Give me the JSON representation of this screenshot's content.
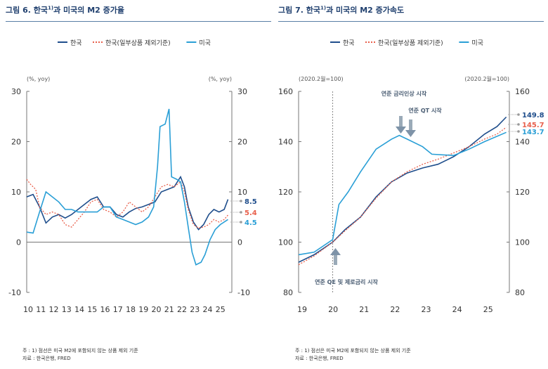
{
  "colors": {
    "korea": "#1f4e8c",
    "korea_excl": "#e8604c",
    "us": "#2a9fd6",
    "axis": "#555555"
  },
  "chart_data": [
    {
      "type": "line",
      "title": "그림 6. 한국",
      "title_sup": "1)",
      "title_rest": "과 미국의 M2 증가율",
      "unit_left": "(%, yoy)",
      "unit_right": "(%, yoy)",
      "ylim": [
        -10,
        30
      ],
      "yticks": [
        -10,
        0,
        10,
        20,
        30
      ],
      "xlim": [
        2010,
        2026
      ],
      "xticks": [
        "10",
        "11",
        "12",
        "13",
        "14",
        "15",
        "16",
        "17",
        "18",
        "19",
        "20",
        "21",
        "22",
        "23",
        "24",
        "25"
      ],
      "legend": {
        "placement": "top-center"
      },
      "series": [
        {
          "name": "한국",
          "key": "korea",
          "style": "solid",
          "end_label": "8.5",
          "points": [
            [
              2010,
              9
            ],
            [
              2010.5,
              9.5
            ],
            [
              2011,
              7
            ],
            [
              2011.5,
              3.8
            ],
            [
              2012,
              5
            ],
            [
              2012.5,
              5.5
            ],
            [
              2013,
              4.8
            ],
            [
              2013.5,
              5.5
            ],
            [
              2014,
              6.5
            ],
            [
              2014.5,
              7.5
            ],
            [
              2015,
              8.5
            ],
            [
              2015.5,
              9
            ],
            [
              2016,
              7
            ],
            [
              2016.5,
              7
            ],
            [
              2017,
              5.5
            ],
            [
              2017.5,
              5
            ],
            [
              2018,
              6
            ],
            [
              2018.5,
              6.7
            ],
            [
              2019,
              7
            ],
            [
              2019.5,
              7.5
            ],
            [
              2020,
              8
            ],
            [
              2020.5,
              10
            ],
            [
              2021,
              10.5
            ],
            [
              2021.5,
              11
            ],
            [
              2022,
              13
            ],
            [
              2022.3,
              11
            ],
            [
              2022.6,
              7
            ],
            [
              2023,
              4
            ],
            [
              2023.4,
              2.5
            ],
            [
              2023.8,
              3.5
            ],
            [
              2024.2,
              5.5
            ],
            [
              2024.6,
              6.5
            ],
            [
              2025,
              6
            ],
            [
              2025.4,
              6.5
            ],
            [
              2025.7,
              8.5
            ]
          ]
        },
        {
          "name": "한국(일부상품 제외기준)",
          "key": "korea_excl",
          "style": "dotted",
          "end_label": "5.4",
          "points": [
            [
              2010,
              12.5
            ],
            [
              2010.3,
              11.5
            ],
            [
              2010.7,
              10.5
            ],
            [
              2011,
              7
            ],
            [
              2011.5,
              5.5
            ],
            [
              2012,
              6
            ],
            [
              2012.5,
              5.5
            ],
            [
              2013,
              3.5
            ],
            [
              2013.5,
              3
            ],
            [
              2014,
              4.5
            ],
            [
              2014.5,
              6
            ],
            [
              2015,
              8
            ],
            [
              2015.5,
              8.5
            ],
            [
              2016,
              6.5
            ],
            [
              2016.5,
              6
            ],
            [
              2017,
              5
            ],
            [
              2017.5,
              6
            ],
            [
              2018,
              8
            ],
            [
              2018.5,
              7
            ],
            [
              2019,
              6
            ],
            [
              2019.5,
              7
            ],
            [
              2020,
              9
            ],
            [
              2020.5,
              11
            ],
            [
              2021,
              11.5
            ],
            [
              2021.5,
              11
            ],
            [
              2022,
              12
            ],
            [
              2022.3,
              10
            ],
            [
              2022.6,
              6.5
            ],
            [
              2023,
              3.5
            ],
            [
              2023.4,
              2.8
            ],
            [
              2023.8,
              3
            ],
            [
              2024.2,
              3.5
            ],
            [
              2024.6,
              4.5
            ],
            [
              2025,
              4
            ],
            [
              2025.4,
              4.5
            ],
            [
              2025.7,
              5.4
            ]
          ]
        },
        {
          "name": "미국",
          "key": "us",
          "style": "solid",
          "end_label": "4.5",
          "points": [
            [
              2010,
              2
            ],
            [
              2010.5,
              1.8
            ],
            [
              2011,
              6
            ],
            [
              2011.5,
              10
            ],
            [
              2012,
              9
            ],
            [
              2012.5,
              8
            ],
            [
              2013,
              6.5
            ],
            [
              2013.5,
              6.5
            ],
            [
              2014,
              6
            ],
            [
              2014.5,
              6
            ],
            [
              2015,
              6
            ],
            [
              2015.5,
              6
            ],
            [
              2016,
              7
            ],
            [
              2016.5,
              7
            ],
            [
              2017,
              5
            ],
            [
              2017.5,
              4.5
            ],
            [
              2018,
              4
            ],
            [
              2018.5,
              3.5
            ],
            [
              2019,
              4
            ],
            [
              2019.5,
              5
            ],
            [
              2019.9,
              7
            ],
            [
              2020.2,
              15
            ],
            [
              2020.4,
              23
            ],
            [
              2020.8,
              23.5
            ],
            [
              2021.1,
              26.5
            ],
            [
              2021.3,
              13
            ],
            [
              2021.7,
              12.5
            ],
            [
              2022,
              12
            ],
            [
              2022.3,
              8
            ],
            [
              2022.6,
              3
            ],
            [
              2022.9,
              -2
            ],
            [
              2023.2,
              -4.5
            ],
            [
              2023.6,
              -4
            ],
            [
              2023.9,
              -2.5
            ],
            [
              2024.3,
              0.5
            ],
            [
              2024.7,
              2.5
            ],
            [
              2025.1,
              3.5
            ],
            [
              2025.7,
              4.5
            ]
          ]
        }
      ],
      "annotations": [],
      "footnote": "주 : 1) 점선은 미국 M2에 포함되지 않는 상품 제외 기준",
      "source": "자료 : 한국은행, FRED"
    },
    {
      "type": "line",
      "title": "그림 7. 한국",
      "title_sup": "1)",
      "title_rest": "과 미국의 M2 증가속도",
      "unit_left": "(2020.2월=100)",
      "unit_right": "(2020.2월=100)",
      "ylim": [
        80,
        160
      ],
      "yticks": [
        80,
        100,
        120,
        140,
        160
      ],
      "xlim": [
        2019,
        2025.8
      ],
      "xticks": [
        "19",
        "20",
        "21",
        "22",
        "23",
        "24",
        "25"
      ],
      "legend": {
        "placement": "top-center"
      },
      "series": [
        {
          "name": "한국",
          "key": "korea",
          "style": "solid",
          "end_label": "149.8",
          "points": [
            [
              2019,
              92
            ],
            [
              2019.5,
              95
            ],
            [
              2020.1,
              100
            ],
            [
              2020.5,
              105
            ],
            [
              2021,
              110
            ],
            [
              2021.5,
              118
            ],
            [
              2022,
              124
            ],
            [
              2022.5,
              127.5
            ],
            [
              2023,
              129.5
            ],
            [
              2023.5,
              131
            ],
            [
              2024,
              134
            ],
            [
              2024.5,
              138
            ],
            [
              2025,
              143
            ],
            [
              2025.4,
              146
            ],
            [
              2025.7,
              149.8
            ]
          ]
        },
        {
          "name": "한국(일부상품 제외기준)",
          "key": "korea_excl",
          "style": "dotted",
          "end_label": "145.7",
          "points": [
            [
              2019,
              91
            ],
            [
              2019.5,
              94.5
            ],
            [
              2020.1,
              100
            ],
            [
              2020.5,
              104.5
            ],
            [
              2021,
              110
            ],
            [
              2021.5,
              117.5
            ],
            [
              2022,
              124
            ],
            [
              2022.5,
              128
            ],
            [
              2023,
              131
            ],
            [
              2023.5,
              133
            ],
            [
              2024,
              135.5
            ],
            [
              2024.5,
              138
            ],
            [
              2025,
              141
            ],
            [
              2025.4,
              143
            ],
            [
              2025.7,
              145.7
            ]
          ]
        },
        {
          "name": "미국",
          "key": "us",
          "style": "solid",
          "end_label": "143.7",
          "points": [
            [
              2019,
              95
            ],
            [
              2019.5,
              96
            ],
            [
              2020.1,
              101
            ],
            [
              2020.3,
              115
            ],
            [
              2020.6,
              120
            ],
            [
              2021,
              128
            ],
            [
              2021.5,
              137
            ],
            [
              2022,
              141
            ],
            [
              2022.25,
              142.5
            ],
            [
              2022.5,
              141
            ],
            [
              2023,
              138
            ],
            [
              2023.3,
              135
            ],
            [
              2024,
              134.5
            ],
            [
              2024.5,
              137
            ],
            [
              2025,
              140
            ],
            [
              2025.7,
              143.7
            ]
          ]
        }
      ],
      "annotations": [
        {
          "text": "연준 금리인상 시작",
          "x": 2022.2
        },
        {
          "text": "연준 QT 시작",
          "x": 2022.45
        },
        {
          "text": "연준 QE 및 제로금리 시작",
          "x": 2020.1
        }
      ],
      "footnote": "주 : 1) 점선은 미국 M2에 포함되지 않는 상품 제외 기준",
      "source": "자료 : 한국은행, FRED"
    }
  ]
}
